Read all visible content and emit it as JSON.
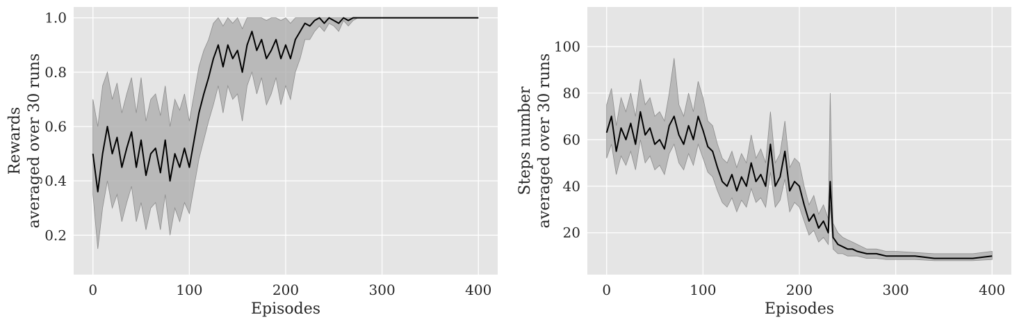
{
  "chart_data": [
    {
      "type": "line",
      "title": "",
      "xlabel": "Episodes",
      "ylabel": [
        "Rewards",
        "averaged over 30 runs"
      ],
      "xlim": [
        -20,
        420
      ],
      "ylim": [
        0.055,
        1.04
      ],
      "xticks": [
        0,
        100,
        200,
        300,
        400
      ],
      "yticks": [
        0.2,
        0.4,
        0.6,
        0.8,
        1.0
      ],
      "xtick_labels": [
        "0",
        "100",
        "200",
        "300",
        "400"
      ],
      "ytick_labels": [
        "0.2",
        "0.4",
        "0.6",
        "0.8",
        "1.0"
      ],
      "grid": true,
      "colors": {
        "line": "#000000",
        "band": "#a9a9a9",
        "background": "#e5e5e5",
        "grid": "#ffffff"
      },
      "series": [
        {
          "x": [
            0,
            5,
            10,
            15,
            20,
            25,
            30,
            35,
            40,
            45,
            50,
            55,
            60,
            65,
            70,
            75,
            80,
            85,
            90,
            95,
            100,
            105,
            110,
            115,
            120,
            125,
            130,
            135,
            140,
            145,
            150,
            155,
            160,
            165,
            170,
            175,
            180,
            185,
            190,
            195,
            200,
            205,
            210,
            215,
            220,
            225,
            230,
            235,
            240,
            245,
            250,
            255,
            260,
            265,
            270,
            275,
            280,
            285,
            290,
            300,
            350,
            400
          ],
          "mean": [
            0.5,
            0.36,
            0.5,
            0.6,
            0.5,
            0.56,
            0.45,
            0.52,
            0.58,
            0.45,
            0.55,
            0.42,
            0.5,
            0.52,
            0.43,
            0.55,
            0.4,
            0.5,
            0.45,
            0.52,
            0.45,
            0.55,
            0.65,
            0.72,
            0.78,
            0.85,
            0.9,
            0.82,
            0.9,
            0.85,
            0.88,
            0.8,
            0.9,
            0.95,
            0.88,
            0.92,
            0.85,
            0.88,
            0.92,
            0.85,
            0.9,
            0.85,
            0.92,
            0.95,
            0.98,
            0.97,
            0.99,
            1.0,
            0.98,
            1.0,
            0.99,
            0.98,
            1.0,
            0.99,
            1.0,
            1.0,
            1.0,
            1.0,
            1.0,
            1.0,
            1.0,
            1.0
          ],
          "lower": [
            0.35,
            0.15,
            0.3,
            0.4,
            0.3,
            0.35,
            0.25,
            0.32,
            0.38,
            0.25,
            0.32,
            0.22,
            0.3,
            0.32,
            0.22,
            0.35,
            0.2,
            0.3,
            0.25,
            0.32,
            0.28,
            0.38,
            0.48,
            0.55,
            0.62,
            0.68,
            0.75,
            0.65,
            0.75,
            0.7,
            0.72,
            0.62,
            0.75,
            0.8,
            0.72,
            0.78,
            0.68,
            0.72,
            0.78,
            0.68,
            0.75,
            0.7,
            0.8,
            0.85,
            0.92,
            0.92,
            0.95,
            0.97,
            0.95,
            0.98,
            0.97,
            0.95,
            0.99,
            0.97,
            0.99,
            1.0,
            1.0,
            1.0,
            1.0,
            1.0,
            1.0,
            1.0
          ],
          "upper": [
            0.7,
            0.6,
            0.75,
            0.8,
            0.7,
            0.76,
            0.65,
            0.72,
            0.78,
            0.65,
            0.78,
            0.62,
            0.7,
            0.72,
            0.64,
            0.75,
            0.6,
            0.7,
            0.66,
            0.72,
            0.62,
            0.72,
            0.82,
            0.88,
            0.92,
            0.98,
            1.0,
            0.97,
            1.0,
            0.98,
            1.0,
            0.96,
            1.0,
            1.0,
            1.0,
            1.0,
            0.99,
            1.0,
            1.0,
            0.99,
            1.0,
            0.98,
            1.0,
            1.0,
            1.0,
            1.0,
            1.0,
            1.0,
            1.0,
            1.0,
            1.0,
            1.0,
            1.0,
            1.0,
            1.0,
            1.0,
            1.0,
            1.0,
            1.0,
            1.0,
            1.0,
            1.0
          ]
        }
      ]
    },
    {
      "type": "line",
      "title": "",
      "xlabel": "Episodes",
      "ylabel": [
        "Steps number",
        "averaged over 30 runs"
      ],
      "xlim": [
        -20,
        420
      ],
      "ylim": [
        2,
        117
      ],
      "xticks": [
        0,
        100,
        200,
        300,
        400
      ],
      "yticks": [
        20,
        40,
        60,
        80,
        100
      ],
      "xtick_labels": [
        "0",
        "100",
        "200",
        "300",
        "400"
      ],
      "ytick_labels": [
        "20",
        "40",
        "60",
        "80",
        "100"
      ],
      "grid": true,
      "colors": {
        "line": "#000000",
        "band": "#a9a9a9",
        "background": "#e5e5e5",
        "grid": "#ffffff"
      },
      "series": [
        {
          "x": [
            0,
            5,
            10,
            15,
            20,
            25,
            30,
            35,
            40,
            45,
            50,
            55,
            60,
            65,
            70,
            75,
            80,
            85,
            90,
            95,
            100,
            105,
            110,
            115,
            120,
            125,
            130,
            135,
            140,
            145,
            150,
            155,
            160,
            165,
            170,
            175,
            180,
            185,
            190,
            195,
            200,
            205,
            210,
            215,
            220,
            225,
            230,
            232,
            235,
            240,
            245,
            250,
            255,
            260,
            270,
            280,
            290,
            300,
            320,
            340,
            360,
            380,
            400
          ],
          "mean": [
            63,
            70,
            55,
            65,
            60,
            67,
            58,
            72,
            62,
            65,
            58,
            60,
            56,
            66,
            70,
            62,
            58,
            66,
            60,
            70,
            64,
            57,
            55,
            48,
            42,
            40,
            45,
            38,
            44,
            40,
            50,
            42,
            45,
            40,
            58,
            40,
            44,
            55,
            38,
            42,
            40,
            32,
            25,
            28,
            22,
            25,
            20,
            42,
            18,
            15,
            14,
            13,
            13,
            12,
            11,
            11,
            10,
            10,
            10,
            9,
            9,
            9,
            10
          ],
          "lower": [
            52,
            58,
            45,
            53,
            49,
            55,
            47,
            60,
            50,
            53,
            47,
            49,
            45,
            54,
            58,
            50,
            47,
            54,
            49,
            58,
            52,
            46,
            44,
            38,
            33,
            31,
            35,
            29,
            34,
            31,
            39,
            33,
            35,
            31,
            46,
            31,
            34,
            43,
            29,
            33,
            31,
            25,
            19,
            21,
            16,
            18,
            15,
            32,
            13,
            11,
            11,
            10,
            10,
            10,
            9,
            9,
            8.5,
            8.5,
            8.5,
            8,
            8,
            8,
            8.5
          ],
          "upper": [
            75,
            82,
            66,
            78,
            72,
            80,
            70,
            86,
            75,
            78,
            70,
            72,
            68,
            80,
            95,
            75,
            70,
            80,
            72,
            85,
            78,
            68,
            66,
            58,
            52,
            50,
            55,
            48,
            54,
            50,
            62,
            52,
            56,
            50,
            72,
            50,
            54,
            68,
            48,
            52,
            50,
            40,
            32,
            36,
            28,
            32,
            26,
            80,
            24,
            20,
            18,
            17,
            16,
            15,
            13,
            13,
            12,
            12,
            11.5,
            11,
            11,
            11,
            12
          ]
        }
      ]
    }
  ]
}
